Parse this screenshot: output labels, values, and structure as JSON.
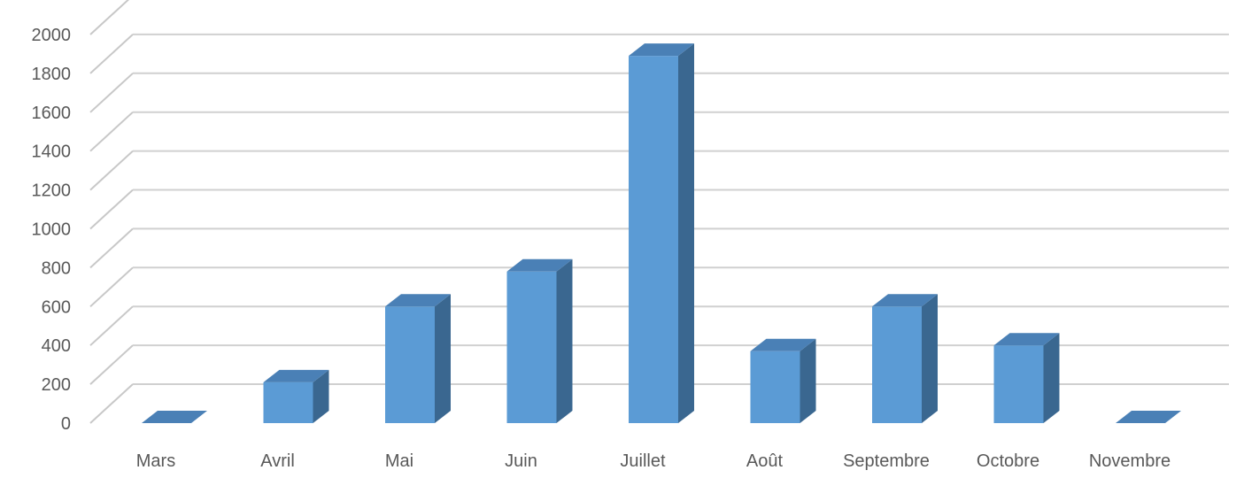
{
  "chart_data": {
    "type": "bar",
    "style": "3d-column",
    "categories": [
      "Mars",
      "Avril",
      "Mai",
      "Juin",
      "Juillet",
      "Août",
      "Septembre",
      "Octobre",
      "Novembre"
    ],
    "values": [
      0,
      210,
      600,
      780,
      1890,
      370,
      600,
      400,
      0
    ],
    "y_ticks": [
      "0",
      "200",
      "400",
      "600",
      "800",
      "1000",
      "1200",
      "1400",
      "1600",
      "1800",
      "2000"
    ],
    "ylim": [
      0,
      2100
    ],
    "grid": true,
    "legend": "none",
    "colors": {
      "front": "#5b9bd5",
      "side": "#3a6790",
      "top": "#4a80b6",
      "grid": "#d0d0d0",
      "grid_wall": "#c8c8c8",
      "label": "#595959"
    }
  }
}
